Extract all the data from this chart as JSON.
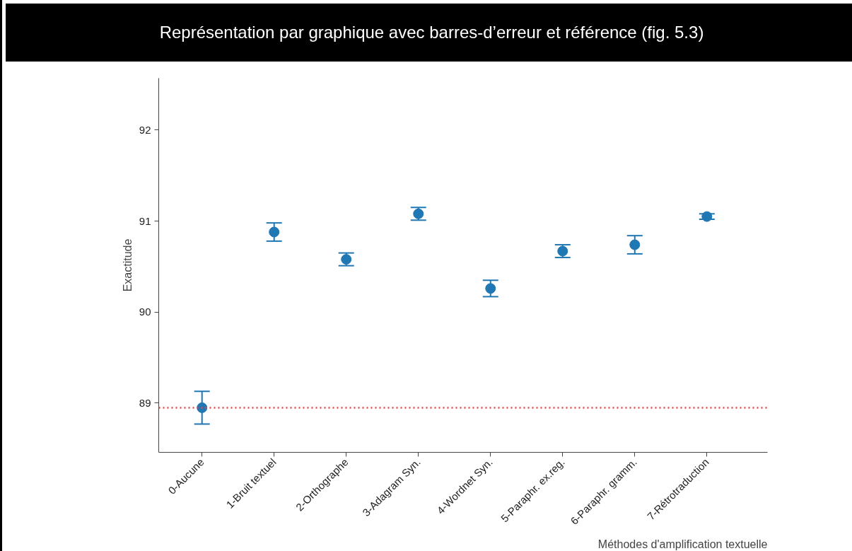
{
  "chart_data": {
    "type": "scatter",
    "title": "Représentation par graphique avec barres-d’erreur et référence (fig. 5.3)",
    "xlabel": "Méthodes d'amplification textuelle",
    "ylabel": "Exactitude",
    "categories": [
      "0-Aucune",
      "1-Bruit textuel",
      "2-Orthographe",
      "3-Adagram Syn.",
      "4-Wordnet Syn.",
      "5-Paraphr. ex.reg.",
      "6-Paraphr. gramm.",
      "7-Rétrotraduction"
    ],
    "series": [
      {
        "color": "#1f77b4",
        "values": [
          88.95,
          90.88,
          90.58,
          91.08,
          90.26,
          90.67,
          90.74,
          91.05
        ],
        "errors": [
          0.18,
          0.1,
          0.07,
          0.07,
          0.09,
          0.07,
          0.1,
          0.03
        ]
      }
    ],
    "marker": "circle",
    "ylim": [
      88.46,
      92.57
    ],
    "yticks": [
      89,
      90,
      91,
      92
    ],
    "grid": false,
    "ref_lines": [
      {
        "axis": "y",
        "value": 88.95,
        "color": "#f04040",
        "line_style": "dotted"
      }
    ]
  }
}
